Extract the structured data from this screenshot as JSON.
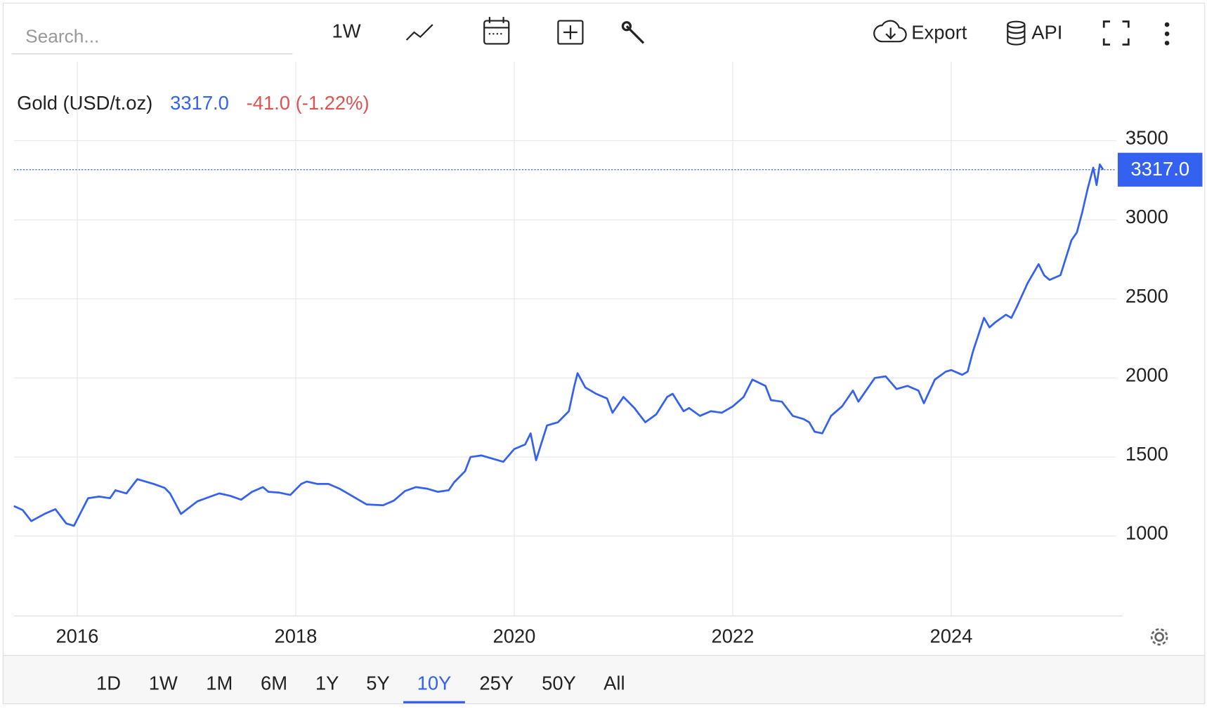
{
  "toolbar": {
    "search_placeholder": "Search...",
    "interval": "1W",
    "export": "Export",
    "api": "API"
  },
  "ranges": [
    "1D",
    "1W",
    "1M",
    "6M",
    "1Y",
    "5Y",
    "10Y",
    "25Y",
    "50Y",
    "All"
  ],
  "active_range": "10Y",
  "chart_data": {
    "type": "line",
    "change": "-41.0 (-1.22%)",
    "change_color": "#e0524f",
    "price_line": {
      "value": 3317,
      "label": "3317.0"
    },
    "x": [
      2015.42,
      2015.5,
      2015.58,
      2015.7,
      2015.8,
      2015.9,
      2015.97,
      2016.1,
      2016.2,
      2016.3,
      2016.35,
      2016.45,
      2016.55,
      2016.7,
      2016.8,
      2016.85,
      2016.95,
      2017.1,
      2017.2,
      2017.3,
      2017.4,
      2017.5,
      2017.6,
      2017.7,
      2017.75,
      2017.85,
      2017.95,
      2018.05,
      2018.1,
      2018.2,
      2018.3,
      2018.4,
      2018.5,
      2018.6,
      2018.65,
      2018.8,
      2018.9,
      2019.0,
      2019.1,
      2019.2,
      2019.3,
      2019.4,
      2019.45,
      2019.55,
      2019.6,
      2019.7,
      2019.8,
      2019.9,
      2020.0,
      2020.1,
      2020.15,
      2020.2,
      2020.3,
      2020.4,
      2020.5,
      2020.55,
      2020.58,
      2020.65,
      2020.75,
      2020.85,
      2020.9,
      2021.0,
      2021.1,
      2021.2,
      2021.3,
      2021.4,
      2021.45,
      2021.55,
      2021.6,
      2021.7,
      2021.8,
      2021.9,
      2022.0,
      2022.1,
      2022.18,
      2022.3,
      2022.35,
      2022.45,
      2022.55,
      2022.65,
      2022.7,
      2022.75,
      2022.82,
      2022.9,
      2023.0,
      2023.1,
      2023.15,
      2023.3,
      2023.4,
      2023.5,
      2023.6,
      2023.7,
      2023.75,
      2023.85,
      2023.95,
      2024.0,
      2024.1,
      2024.15,
      2024.2,
      2024.3,
      2024.35,
      2024.4,
      2024.5,
      2024.55,
      2024.6,
      2024.7,
      2024.8,
      2024.85,
      2024.9,
      2025.0,
      2025.1,
      2025.15,
      2025.2,
      2025.25,
      2025.3,
      2025.33,
      2025.36,
      2025.39
    ],
    "series": [
      {
        "name": "Gold (USD/t.oz)",
        "color": "#3461ef",
        "values": [
          1190,
          1165,
          1095,
          1140,
          1170,
          1080,
          1065,
          1240,
          1250,
          1240,
          1290,
          1270,
          1360,
          1330,
          1305,
          1270,
          1140,
          1220,
          1245,
          1270,
          1255,
          1230,
          1280,
          1310,
          1280,
          1275,
          1260,
          1330,
          1345,
          1330,
          1330,
          1300,
          1260,
          1220,
          1200,
          1195,
          1225,
          1285,
          1310,
          1300,
          1280,
          1290,
          1340,
          1410,
          1500,
          1510,
          1490,
          1470,
          1550,
          1580,
          1650,
          1480,
          1700,
          1720,
          1790,
          1950,
          2030,
          1940,
          1900,
          1870,
          1780,
          1880,
          1810,
          1720,
          1770,
          1880,
          1900,
          1790,
          1810,
          1760,
          1790,
          1780,
          1820,
          1880,
          1990,
          1950,
          1860,
          1850,
          1760,
          1740,
          1720,
          1660,
          1650,
          1760,
          1820,
          1920,
          1850,
          2000,
          2010,
          1930,
          1950,
          1920,
          1840,
          1990,
          2040,
          2050,
          2020,
          2040,
          2170,
          2380,
          2320,
          2350,
          2400,
          2380,
          2450,
          2600,
          2720,
          2650,
          2620,
          2650,
          2870,
          2920,
          3050,
          3200,
          3330,
          3220,
          3350,
          3317
        ]
      }
    ],
    "xlim": [
      2015.42,
      2025.51
    ],
    "xticks": [
      2016,
      2018,
      2020,
      2022,
      2024
    ],
    "ylim": [
      500,
      4000
    ],
    "yticks": [
      1000,
      1500,
      2000,
      2500,
      3000,
      3500
    ],
    "grid": true
  }
}
